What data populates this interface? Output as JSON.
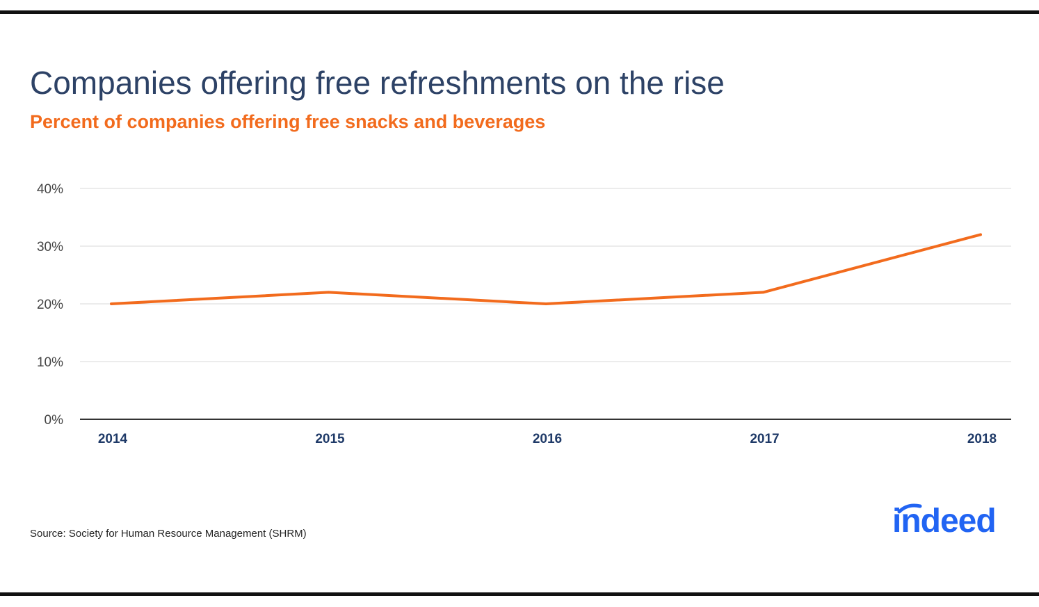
{
  "title": "Companies offering free refreshments on the rise",
  "subtitle": "Percent of companies offering free snacks and beverages",
  "source": "Source: Society for Human Resource Management (SHRM)",
  "logo_text": "indeed",
  "colors": {
    "title": "#2d4266",
    "accent": "#f26b1d",
    "axis_label": "#1f3a68",
    "grid": "#d9d9d9",
    "logo": "#2164f3"
  },
  "chart_data": {
    "type": "line",
    "title": "Companies offering free refreshments on the rise",
    "subtitle": "Percent of companies offering free snacks and beverages",
    "xlabel": "",
    "ylabel": "",
    "categories": [
      "2014",
      "2015",
      "2016",
      "2017",
      "2018"
    ],
    "series": [
      {
        "name": "Percent of companies offering free snacks and beverages",
        "values": [
          20,
          22,
          20,
          22,
          32
        ]
      }
    ],
    "ylim": [
      0,
      40
    ],
    "yticks": [
      0,
      10,
      20,
      30,
      40
    ],
    "ytick_labels": [
      "0%",
      "10%",
      "20%",
      "30%",
      "40%"
    ],
    "grid": true,
    "legend": "none"
  }
}
